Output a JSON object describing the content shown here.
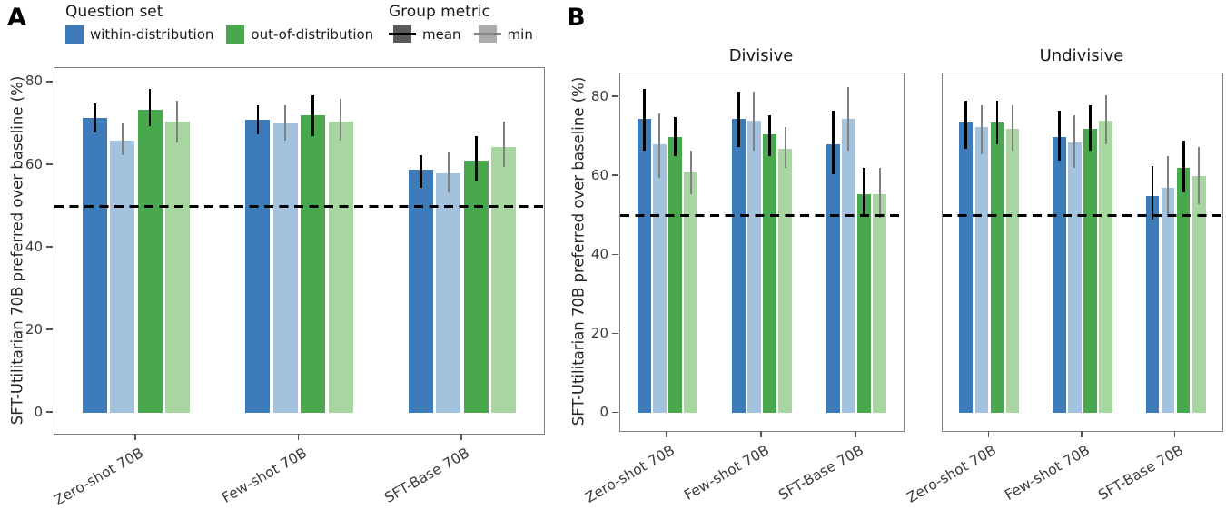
{
  "figure": {
    "panel_a_label": "A",
    "panel_b_label": "B"
  },
  "legend": {
    "question_set": {
      "title": "Question set",
      "items": [
        {
          "label": "within-distribution",
          "color": "#3d7cb8"
        },
        {
          "label": "out-of-distribution",
          "color": "#49a84d"
        }
      ]
    },
    "group_metric": {
      "title": "Group metric",
      "items": [
        {
          "label": "mean",
          "box_color": "#595959",
          "line_color": "#000000"
        },
        {
          "label": "min",
          "box_color": "#ababab",
          "line_color": "#808080"
        }
      ]
    }
  },
  "colors": {
    "within_mean": "#3d7cb8",
    "within_min": "#a2c2de",
    "out_mean": "#49a84d",
    "out_min": "#a8d6a0",
    "err_mean": "#000000",
    "err_min": "#808080",
    "ref_line": "#000000",
    "frame": "#7f7f7f"
  },
  "chart_data": [
    {
      "panel": "A",
      "type": "bar",
      "title": "",
      "ylabel": "SFT-Utilitarian 70B preferred over baseline (%)",
      "categories": [
        "Zero-shot 70B",
        "Few-shot 70B",
        "SFT-Base 70B"
      ],
      "yticks": [
        0,
        20,
        40,
        60,
        80
      ],
      "ylim": [
        -5,
        83.5
      ],
      "ref_line": 50,
      "legend_note": "grid off",
      "series": [
        {
          "name": "within-distribution (mean)",
          "color": "#3d7cb8",
          "err_color": "#000000",
          "values": [
            71.5,
            71,
            59
          ],
          "err_lo": [
            68,
            67.5,
            54.5
          ],
          "err_hi": [
            75,
            74.5,
            62.5
          ]
        },
        {
          "name": "within-distribution (min)",
          "color": "#a2c2de",
          "err_color": "#808080",
          "values": [
            66,
            70,
            58
          ],
          "err_lo": [
            62.5,
            66,
            53.5
          ],
          "err_hi": [
            70,
            74.5,
            63
          ]
        },
        {
          "name": "out-of-distribution (mean)",
          "color": "#49a84d",
          "err_color": "#000000",
          "values": [
            73.5,
            72,
            61
          ],
          "err_lo": [
            69.5,
            67,
            56
          ],
          "err_hi": [
            78.5,
            77,
            67
          ]
        },
        {
          "name": "out-of-distribution (min)",
          "color": "#a8d6a0",
          "err_color": "#808080",
          "values": [
            70.5,
            70.5,
            64.5
          ],
          "err_lo": [
            65.5,
            66,
            59.5
          ],
          "err_hi": [
            75.5,
            76,
            70.5
          ]
        }
      ]
    },
    {
      "panel": "B-left",
      "type": "bar",
      "title": "Divisive",
      "ylabel": "SFT-Utilitarian 70B preferred over baseline (%)",
      "categories": [
        "Zero-shot 70B",
        "Few-shot 70B",
        "SFT-Base 70B"
      ],
      "yticks": [
        0,
        20,
        40,
        60,
        80
      ],
      "ylim": [
        -4.5,
        86
      ],
      "ref_line": 50,
      "series": [
        {
          "name": "within-distribution (mean)",
          "color": "#3d7cb8",
          "err_color": "#000000",
          "values": [
            74.5,
            74.5,
            68
          ],
          "err_lo": [
            66.5,
            67.5,
            60.5
          ],
          "err_hi": [
            82,
            81.5,
            76.5
          ]
        },
        {
          "name": "within-distribution (min)",
          "color": "#a2c2de",
          "err_color": "#808080",
          "values": [
            68,
            74,
            74.5
          ],
          "err_lo": [
            59.5,
            66.5,
            66.5
          ],
          "err_hi": [
            76,
            81.5,
            82.5
          ]
        },
        {
          "name": "out-of-distribution (mean)",
          "color": "#49a84d",
          "err_color": "#000000",
          "values": [
            70,
            70.5,
            55.5
          ],
          "err_lo": [
            65,
            65,
            50
          ],
          "err_hi": [
            75,
            75.5,
            62
          ]
        },
        {
          "name": "out-of-distribution (min)",
          "color": "#a8d6a0",
          "err_color": "#808080",
          "values": [
            61,
            67,
            55.5
          ],
          "err_lo": [
            55.5,
            62,
            49.5
          ],
          "err_hi": [
            66.5,
            72.5,
            62
          ]
        }
      ]
    },
    {
      "panel": "B-right",
      "type": "bar",
      "title": "Undivisive",
      "ylabel": "",
      "categories": [
        "Zero-shot 70B",
        "Few-shot 70B",
        "SFT-Base 70B"
      ],
      "yticks": [
        0,
        20,
        40,
        60,
        80
      ],
      "ylim": [
        -4.5,
        86
      ],
      "ref_line": 50,
      "series": [
        {
          "name": "within-distribution (mean)",
          "color": "#3d7cb8",
          "err_color": "#000000",
          "values": [
            73.5,
            70,
            55
          ],
          "err_lo": [
            67,
            64,
            49
          ],
          "err_hi": [
            79,
            76.5,
            62.5
          ]
        },
        {
          "name": "within-distribution (min)",
          "color": "#a2c2de",
          "err_color": "#808080",
          "values": [
            72.5,
            68.5,
            57
          ],
          "err_lo": [
            65.5,
            62,
            50.5
          ],
          "err_hi": [
            78,
            75.5,
            65
          ]
        },
        {
          "name": "out-of-distribution (mean)",
          "color": "#49a84d",
          "err_color": "#000000",
          "values": [
            73.5,
            72,
            62
          ],
          "err_lo": [
            68,
            66.5,
            56
          ],
          "err_hi": [
            79,
            78,
            69
          ]
        },
        {
          "name": "out-of-distribution (min)",
          "color": "#a8d6a0",
          "err_color": "#808080",
          "values": [
            72,
            74,
            60
          ],
          "err_lo": [
            66.5,
            68,
            53
          ],
          "err_hi": [
            78,
            80.5,
            67.5
          ]
        }
      ]
    }
  ]
}
